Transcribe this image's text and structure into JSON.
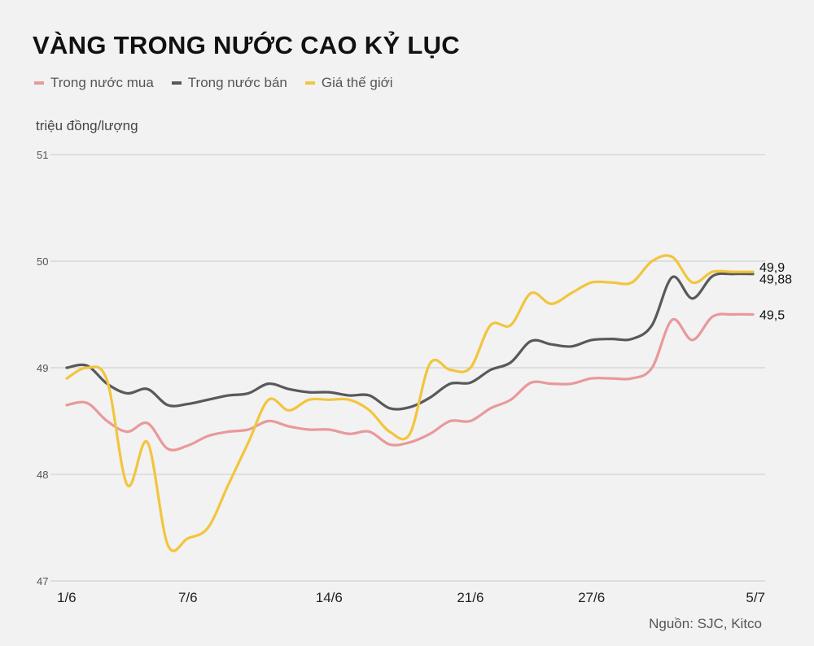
{
  "title": "VÀNG TRONG NƯỚC CAO KỶ LỤC",
  "unit_label": "triệu đồng/lượng",
  "source": "Nguồn: SJC, Kitco",
  "chart_data": {
    "type": "line",
    "ylim": [
      47,
      51
    ],
    "yticks": [
      "47",
      "48",
      "49",
      "50",
      "51"
    ],
    "grid": true,
    "legend_position": "top-left",
    "x": [
      "1/6",
      "2/6",
      "3/6",
      "4/6",
      "5/6",
      "6/6",
      "7/6",
      "8/6",
      "9/6",
      "10/6",
      "11/6",
      "12/6",
      "13/6",
      "14/6",
      "15/6",
      "16/6",
      "17/6",
      "18/6",
      "19/6",
      "20/6",
      "21/6",
      "22/6",
      "23/6",
      "24/6",
      "25/6",
      "26/6",
      "27/6",
      "28/6",
      "29/6",
      "30/6",
      "1/7",
      "2/7",
      "3/7",
      "4/7",
      "5/7"
    ],
    "xticks": [
      "1/6",
      "7/6",
      "14/6",
      "21/6",
      "27/6",
      "5/7"
    ],
    "series": [
      {
        "name": "Trong nước mua",
        "color": "#e8999b",
        "end_label": "49,5",
        "values": [
          48.65,
          48.67,
          48.5,
          48.4,
          48.48,
          48.24,
          48.27,
          48.36,
          48.4,
          48.42,
          48.5,
          48.45,
          48.42,
          48.42,
          48.38,
          48.4,
          48.28,
          48.3,
          48.38,
          48.5,
          48.5,
          48.62,
          48.7,
          48.86,
          48.85,
          48.85,
          48.9,
          48.9,
          48.9,
          49.0,
          49.45,
          49.26,
          49.48,
          49.5,
          49.5
        ]
      },
      {
        "name": "Trong nước bán",
        "color": "#595959",
        "end_label": "49,88",
        "values": [
          49.0,
          49.02,
          48.85,
          48.76,
          48.8,
          48.65,
          48.66,
          48.7,
          48.74,
          48.76,
          48.85,
          48.8,
          48.77,
          48.77,
          48.74,
          48.74,
          48.62,
          48.63,
          48.72,
          48.85,
          48.86,
          48.98,
          49.05,
          49.25,
          49.22,
          49.2,
          49.26,
          49.27,
          49.27,
          49.4,
          49.85,
          49.65,
          49.86,
          49.88,
          49.88
        ]
      },
      {
        "name": "Giá thế giới",
        "color": "#f2c53d",
        "end_label": "49,9",
        "values": [
          48.9,
          49.0,
          48.88,
          47.9,
          48.3,
          47.34,
          47.4,
          47.5,
          47.9,
          48.3,
          48.7,
          48.6,
          48.7,
          48.7,
          48.7,
          48.6,
          48.4,
          48.38,
          49.04,
          48.98,
          49.0,
          49.4,
          49.4,
          49.7,
          49.6,
          49.7,
          49.8,
          49.8,
          49.8,
          50.0,
          50.04,
          49.8,
          49.9,
          49.9,
          49.9
        ]
      }
    ]
  }
}
